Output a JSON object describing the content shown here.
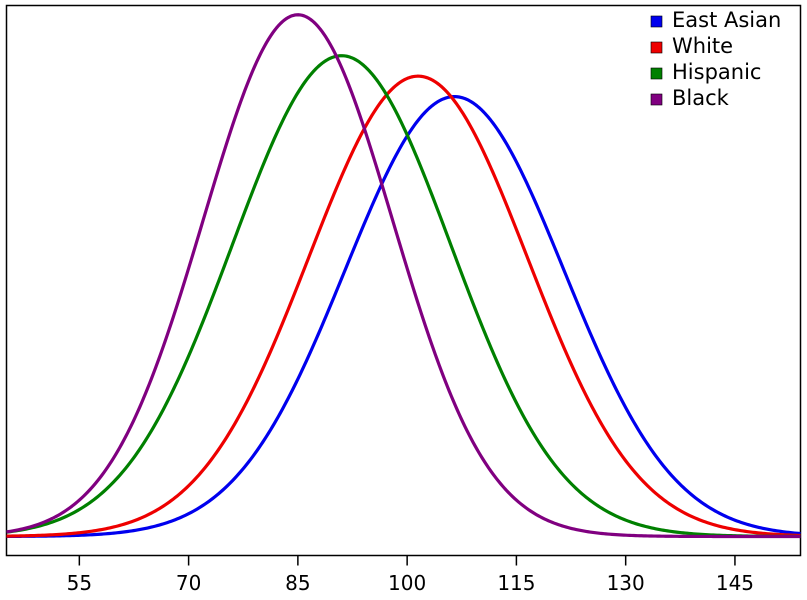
{
  "chart_data": {
    "type": "line",
    "title": "",
    "xlabel": "",
    "ylabel": "",
    "xlim": [
      45,
      154
    ],
    "ylim": [
      0,
      1.07
    ],
    "x_ticks": [
      "55",
      "70",
      "85",
      "100",
      "115",
      "130",
      "145"
    ],
    "legend_position": "top-right",
    "series": [
      {
        "name": "East Asian",
        "color": "#0000ee",
        "mean": 106.5,
        "sd": 15,
        "peak": 0.86
      },
      {
        "name": "White",
        "color": "#ee0000",
        "mean": 101.5,
        "sd": 15,
        "peak": 0.9
      },
      {
        "name": "Hispanic",
        "color": "#008000",
        "mean": 91,
        "sd": 15,
        "peak": 0.94
      },
      {
        "name": "Black",
        "color": "#800080",
        "mean": 85,
        "sd": 13,
        "peak": 1.02
      }
    ]
  }
}
